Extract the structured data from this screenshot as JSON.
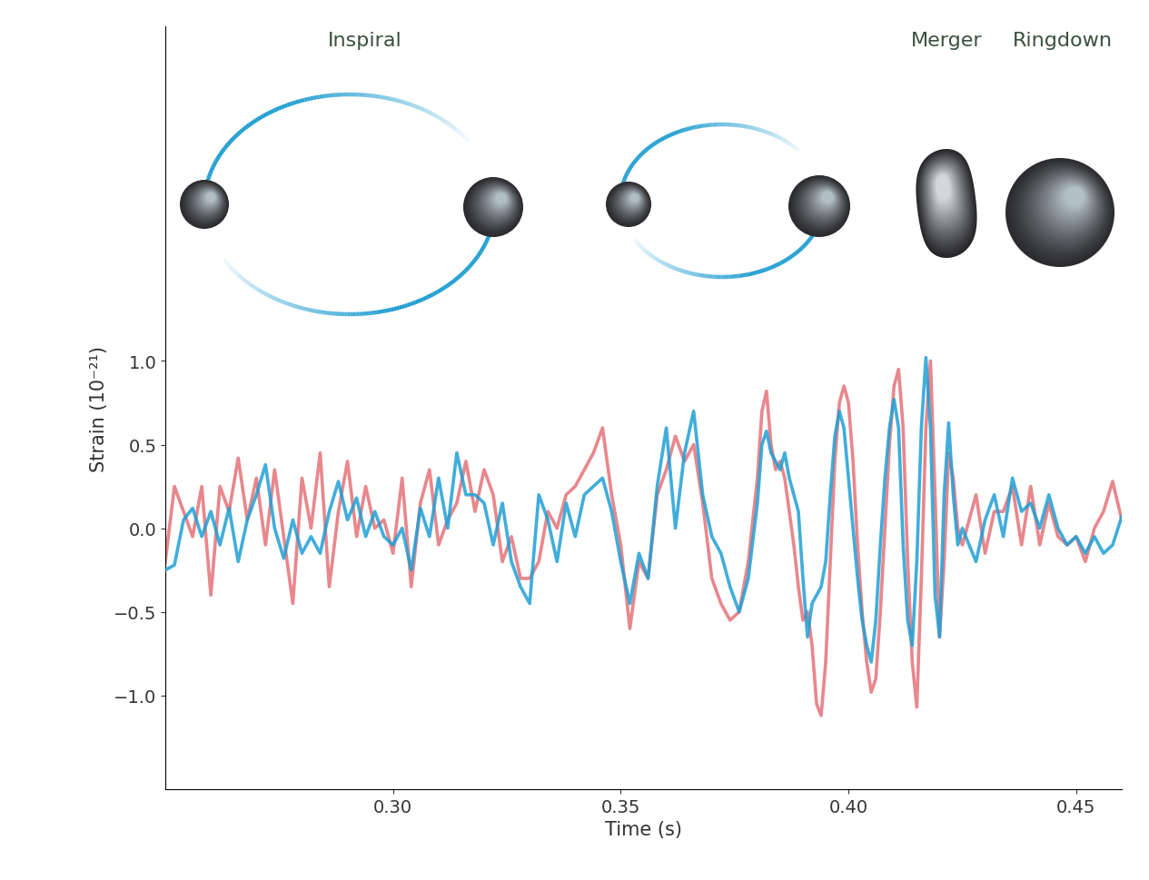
{
  "chart_data": {
    "type": "line",
    "annotations": [
      "Inspiral",
      "Merger",
      "Ringdown"
    ],
    "x_label": "Time (s)",
    "y_label": "Strain (10⁻²¹)",
    "x": [
      0.25,
      0.252,
      0.254,
      0.256,
      0.258,
      0.26,
      0.262,
      0.264,
      0.266,
      0.268,
      0.27,
      0.272,
      0.274,
      0.276,
      0.278,
      0.28,
      0.282,
      0.284,
      0.286,
      0.288,
      0.29,
      0.292,
      0.294,
      0.296,
      0.298,
      0.3,
      0.302,
      0.304,
      0.306,
      0.308,
      0.31,
      0.312,
      0.314,
      0.316,
      0.318,
      0.32,
      0.322,
      0.324,
      0.326,
      0.328,
      0.33,
      0.332,
      0.334,
      0.336,
      0.338,
      0.34,
      0.342,
      0.344,
      0.346,
      0.348,
      0.35,
      0.352,
      0.354,
      0.356,
      0.358,
      0.36,
      0.362,
      0.364,
      0.366,
      0.368,
      0.37,
      0.372,
      0.374,
      0.376,
      0.378,
      0.38,
      0.381,
      0.382,
      0.383,
      0.384,
      0.385,
      0.386,
      0.387,
      0.388,
      0.389,
      0.39,
      0.391,
      0.392,
      0.393,
      0.394,
      0.395,
      0.396,
      0.397,
      0.398,
      0.399,
      0.4,
      0.401,
      0.402,
      0.403,
      0.404,
      0.405,
      0.406,
      0.407,
      0.408,
      0.409,
      0.41,
      0.411,
      0.412,
      0.413,
      0.414,
      0.415,
      0.416,
      0.417,
      0.418,
      0.419,
      0.42,
      0.421,
      0.422,
      0.423,
      0.424,
      0.425,
      0.428,
      0.43,
      0.432,
      0.434,
      0.436,
      0.438,
      0.44,
      0.442,
      0.444,
      0.446,
      0.448,
      0.45,
      0.452,
      0.454,
      0.456,
      0.458,
      0.46
    ],
    "series": [
      {
        "color": "#e8878c",
        "values": [
          -0.2,
          0.25,
          0.1,
          -0.05,
          0.25,
          -0.4,
          0.25,
          0.1,
          0.42,
          0.05,
          0.3,
          -0.1,
          0.35,
          -0.05,
          -0.45,
          0.3,
          0.0,
          0.45,
          -0.35,
          0.1,
          0.4,
          -0.05,
          0.25,
          0.0,
          0.05,
          -0.15,
          0.3,
          -0.35,
          0.15,
          0.35,
          -0.1,
          0.05,
          0.15,
          0.4,
          0.1,
          0.35,
          0.2,
          -0.2,
          -0.05,
          -0.3,
          -0.3,
          -0.2,
          0.1,
          0.0,
          0.2,
          0.25,
          0.35,
          0.45,
          0.6,
          0.2,
          -0.1,
          -0.6,
          -0.2,
          -0.3,
          0.2,
          0.35,
          0.55,
          0.4,
          0.5,
          0.15,
          -0.3,
          -0.45,
          -0.55,
          -0.5,
          -0.2,
          0.3,
          0.7,
          0.82,
          0.5,
          0.35,
          0.4,
          0.3,
          0.1,
          -0.1,
          -0.35,
          -0.55,
          -0.5,
          -0.7,
          -1.05,
          -1.12,
          -0.8,
          -0.2,
          0.4,
          0.75,
          0.85,
          0.75,
          0.4,
          -0.1,
          -0.5,
          -0.8,
          -0.98,
          -0.9,
          -0.5,
          0.0,
          0.5,
          0.85,
          0.95,
          0.6,
          -0.2,
          -0.8,
          -1.07,
          -0.3,
          0.6,
          1.0,
          0.2,
          -0.65,
          -0.2,
          0.45,
          0.3,
          0.0,
          -0.1,
          0.2,
          -0.15,
          0.1,
          0.1,
          0.25,
          -0.1,
          0.25,
          -0.1,
          0.15,
          -0.05,
          -0.1,
          -0.05,
          -0.2,
          0.0,
          0.1,
          0.28,
          0.05
        ]
      },
      {
        "color": "#1f9fd5",
        "values": [
          -0.25,
          -0.22,
          0.05,
          0.12,
          -0.05,
          0.1,
          -0.1,
          0.12,
          -0.2,
          0.05,
          0.2,
          0.38,
          0.0,
          -0.18,
          0.05,
          -0.15,
          -0.05,
          -0.15,
          0.1,
          0.28,
          0.05,
          0.18,
          -0.05,
          0.1,
          -0.05,
          -0.1,
          0.0,
          -0.25,
          0.12,
          -0.05,
          0.3,
          0.0,
          0.45,
          0.2,
          0.2,
          0.15,
          -0.1,
          0.15,
          -0.2,
          -0.35,
          -0.45,
          0.2,
          0.05,
          -0.2,
          0.15,
          -0.05,
          0.2,
          0.25,
          0.3,
          0.1,
          -0.2,
          -0.45,
          -0.15,
          -0.3,
          0.25,
          0.6,
          0.0,
          0.45,
          0.7,
          0.2,
          -0.05,
          -0.15,
          -0.35,
          -0.5,
          -0.3,
          0.15,
          0.5,
          0.58,
          0.45,
          0.4,
          0.35,
          0.45,
          0.3,
          0.2,
          0.1,
          -0.3,
          -0.65,
          -0.45,
          -0.4,
          -0.35,
          -0.2,
          0.2,
          0.55,
          0.7,
          0.6,
          0.3,
          0.0,
          -0.3,
          -0.55,
          -0.7,
          -0.8,
          -0.55,
          -0.1,
          0.3,
          0.6,
          0.77,
          0.6,
          -0.1,
          -0.55,
          -0.7,
          -0.2,
          0.6,
          1.02,
          0.6,
          -0.4,
          -0.65,
          0.2,
          0.63,
          0.2,
          -0.1,
          0.0,
          -0.2,
          0.05,
          0.2,
          -0.05,
          0.3,
          0.1,
          0.15,
          0.0,
          0.2,
          0.0,
          -0.1,
          -0.05,
          -0.15,
          -0.05,
          -0.15,
          -0.1,
          0.07
        ]
      }
    ],
    "xlim": [
      0.25,
      0.46
    ],
    "ylim": [
      -1.56,
      3.0
    ],
    "xticks": [
      {
        "value": 0.3,
        "label": "0.30"
      },
      0.35,
      {
        "value": 0.4,
        "label": "0.40"
      },
      0.45
    ],
    "yticks": [
      1.0,
      0.5,
      0.0,
      {
        "value": -0.5,
        "label": "−0.5"
      },
      {
        "value": -1.0,
        "label": "−1.0"
      }
    ]
  }
}
